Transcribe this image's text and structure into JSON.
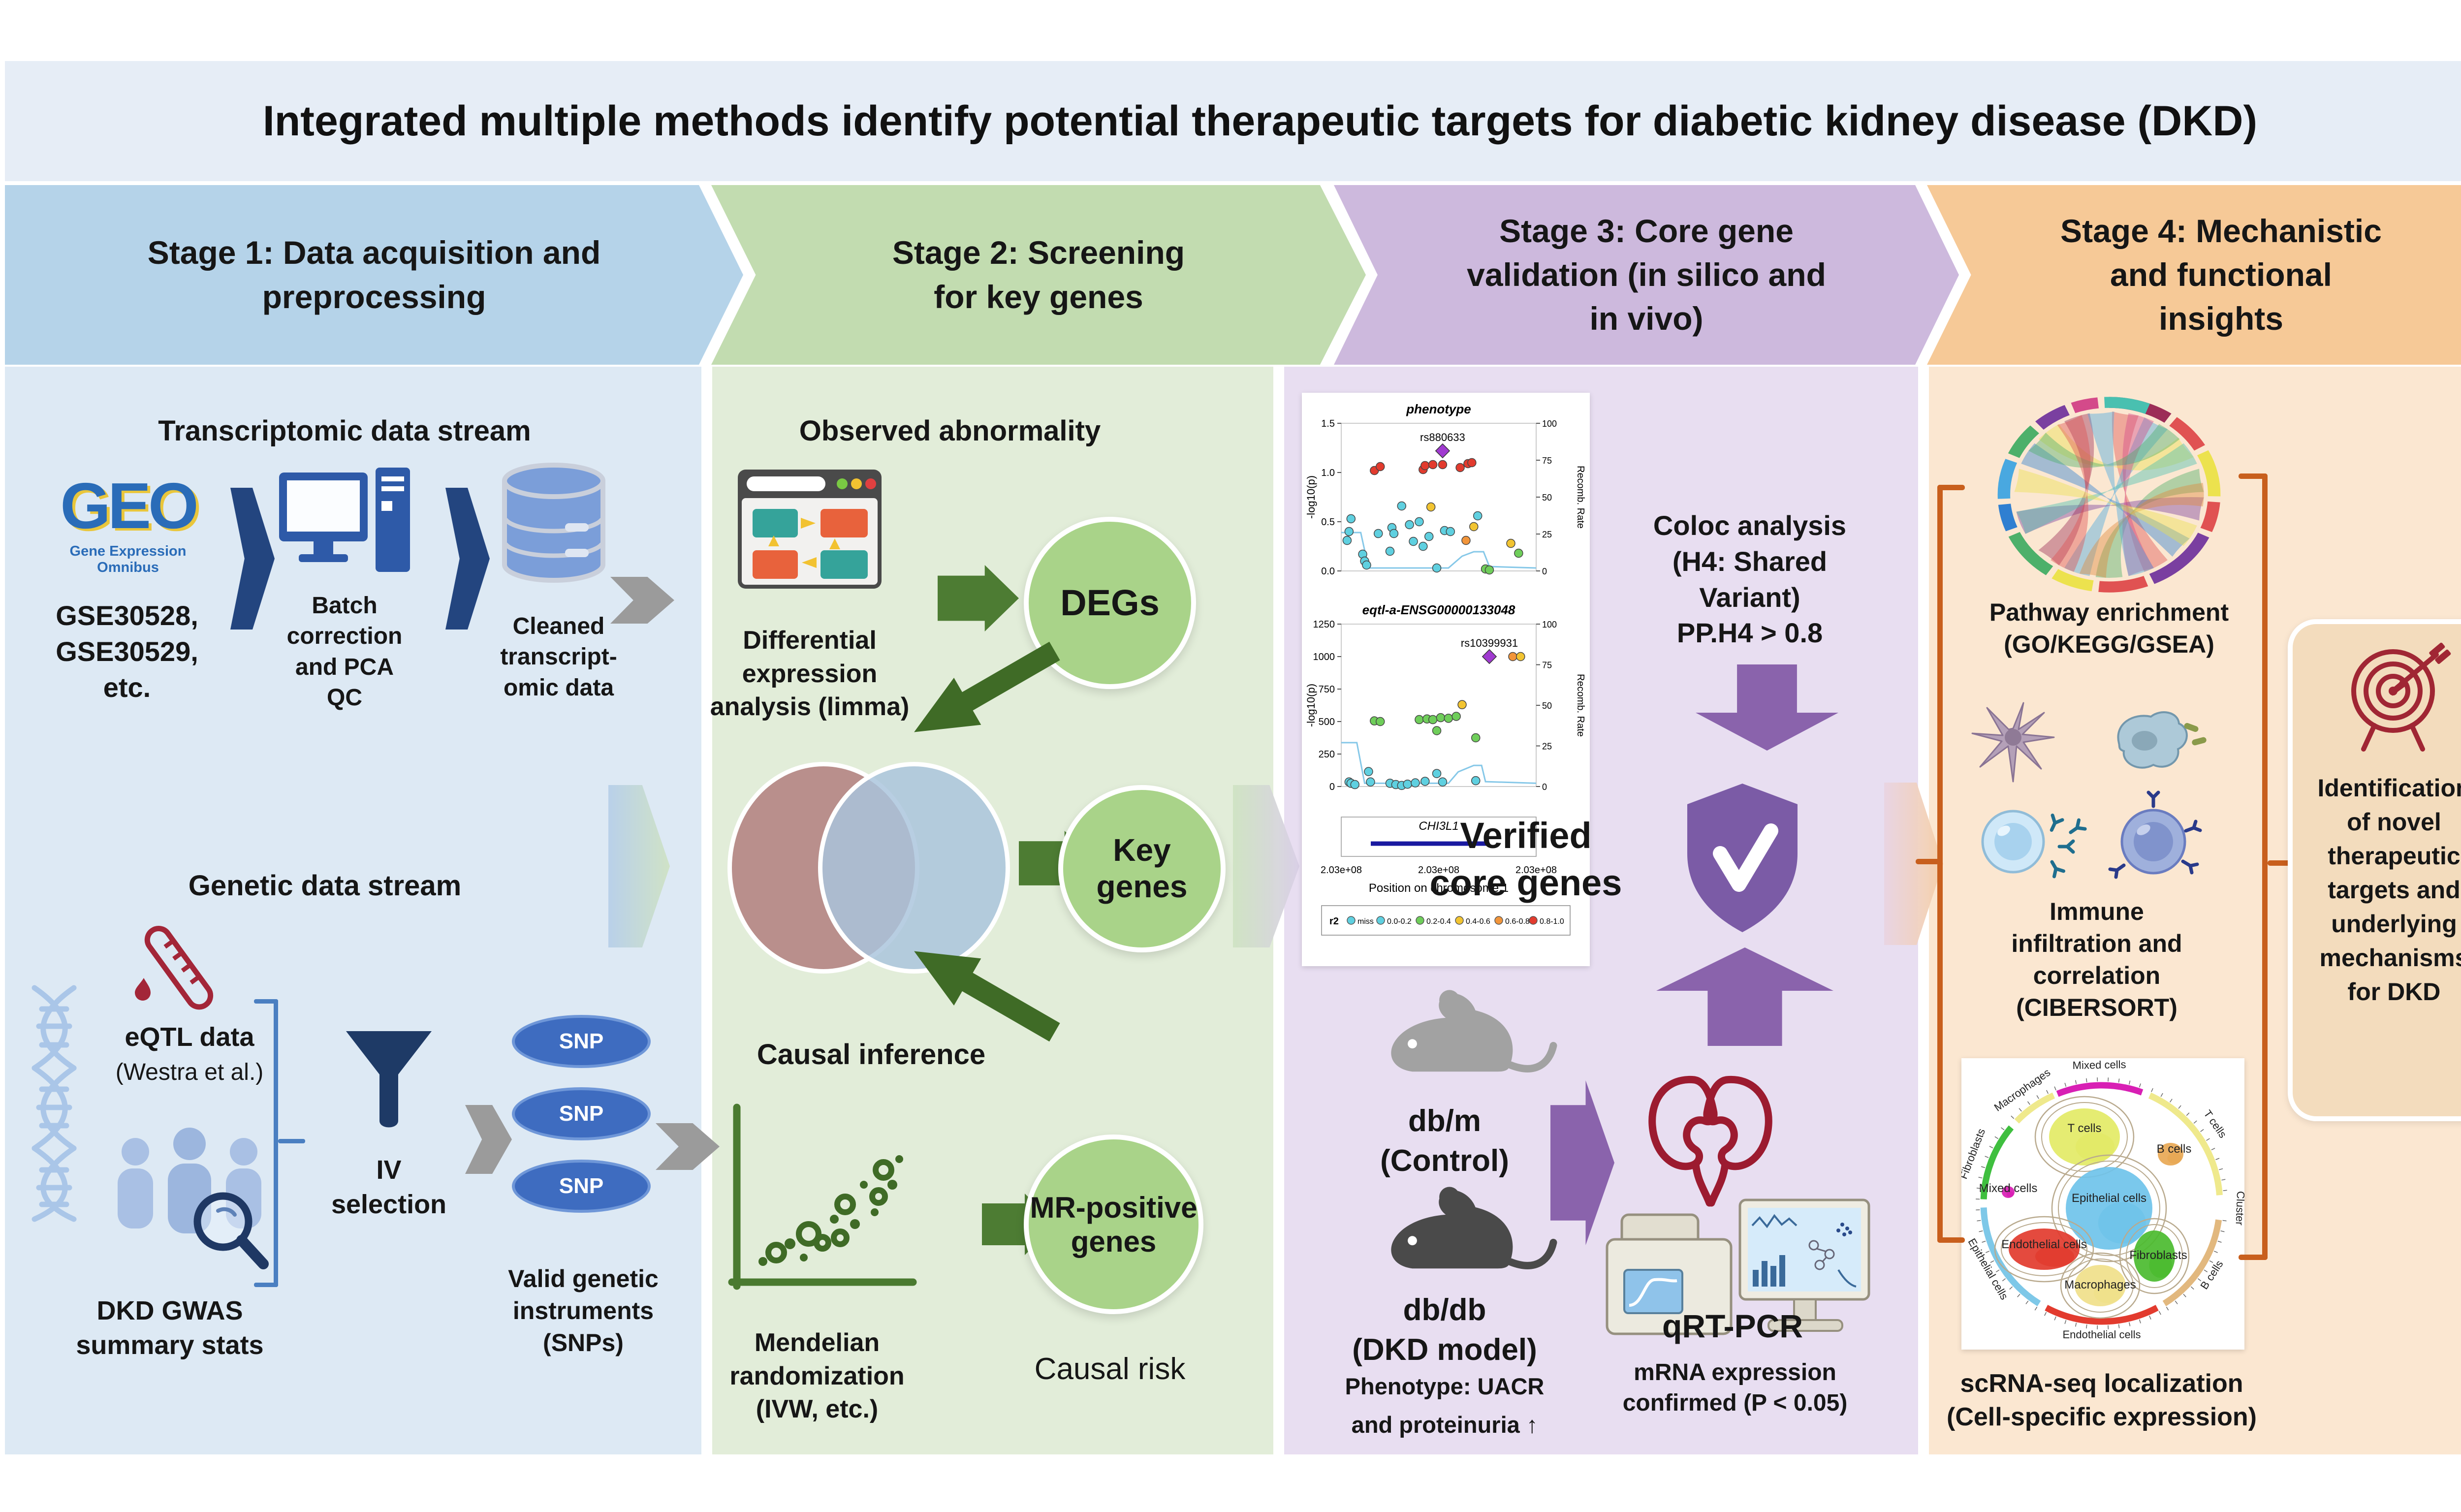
{
  "title": "Integrated multiple methods identify potential therapeutic targets for diabetic kidney disease (DKD)",
  "stages": [
    {
      "label": "Stage 1: Data acquisition and\npreprocessing"
    },
    {
      "label": "Stage 2: Screening\nfor key genes"
    },
    {
      "label": "Stage 3: Core gene\nvalidation (in silico and\nin vivo)"
    },
    {
      "label": "Stage 4: Mechanistic\nand functional\ninsights"
    }
  ],
  "stage1": {
    "heading_transcriptomic": "Transcriptomic data stream",
    "geo_logo": "GEO",
    "geo_sub": "Gene Expression Omnibus",
    "gse": "GSE30528,\nGSE30529,\netc.",
    "batch": "Batch\ncorrection\nand PCA\nQC",
    "cleaned": "Cleaned\ntranscript-\nomic data",
    "heading_genetic": "Genetic data stream",
    "eqtl": "eQTL data",
    "eqtl_sub": "(Westra et al.)",
    "gwas": "DKD GWAS\nsummary stats",
    "iv": "IV\nselection",
    "snp_label": "SNP",
    "valid": "Valid genetic\ninstruments\n(SNPs)"
  },
  "stage2": {
    "heading_observed": "Observed abnormality",
    "dea": "Differential\nexpression\nanalysis (limma)",
    "degs": "DEGs",
    "key_genes": "Key\ngenes",
    "heading_causal": "Causal inference",
    "mr": "Mendelian\nrandomization\n(IVW, etc.)",
    "mr_positive": "MR-positive\ngenes",
    "causal_risk": "Causal risk"
  },
  "stage3": {
    "coloc": "Coloc analysis\n(H4: Shared\nVariant)\nPP.H4 > 0.8",
    "verified": "Verified\ncore genes",
    "dbm": "db/m\n(Control)",
    "dbdb": "db/db\n(DKD model)",
    "phenotype_note": "Phenotype: UACR\nand proteinuria ↑",
    "qrtpcr": "qRT-PCR",
    "mrna": "mRNA expression\nconfirmed (P < 0.05)"
  },
  "stage4": {
    "pathway": "Pathway enrichment\n(GO/KEGG/GSEA)",
    "immune": "Immune\ninfiltration and\ncorrelation\n(CIBERSORT)",
    "scrna": "scRNA-seq localization\n(Cell-specific expression)",
    "id_box": "Identification\nof novel\ntherapeutic\ntargets and\nunderlying\nmechanisms\nfor DKD"
  },
  "colors": {
    "stage_headers": [
      "#b5d3e9",
      "#c2dcb0",
      "#cdb9dd",
      "#f6c997"
    ],
    "columns": [
      "#dde9f4",
      "#e2edd9",
      "#e8def1",
      "#fbe7d1"
    ],
    "green_circle": "#a9d389",
    "dark_green": "#44722c",
    "purple": "#8a63ac",
    "navy": "#23457f",
    "orange_bracket": "#c85f1d",
    "dark_red": "#9c1b30"
  },
  "chart_data": [
    {
      "type": "scatter",
      "name": "coloc-locuszoom",
      "xlabel": "Position on chromosome 1",
      "x_tick_labels": [
        "2.03e+08",
        "2.03e+08",
        "2.03e+08"
      ],
      "right_axis_label": "Recomb. Rate",
      "right_ticks": [
        0,
        25,
        50,
        75,
        100
      ],
      "gene_track": {
        "gene": "CHI3L1"
      },
      "legend": {
        "title": "r2",
        "entries": [
          {
            "label": "miss",
            "color": "#5fd0e0"
          },
          {
            "label": "0.0-0.2",
            "color": "#5fd0e0"
          },
          {
            "label": "0.2-0.4",
            "color": "#6fce5a"
          },
          {
            "label": "0.4-0.6",
            "color": "#f2c431"
          },
          {
            "label": "0.6-0.8",
            "color": "#f2953a"
          },
          {
            "label": "0.8-1.0",
            "color": "#e23b2e"
          }
        ]
      },
      "plots": [
        {
          "title": "phenotype",
          "ylabel": "-log10(p)",
          "ylim": [
            0,
            1.5
          ],
          "yticks": [
            "0.0",
            "0.5",
            "1.0",
            "1.5"
          ],
          "highlight": {
            "label": "rs880633",
            "x": 0.52,
            "y": 1.22,
            "color": "#a03ad0"
          },
          "points": [
            {
              "x": 0.17,
              "y": 1.02,
              "c": "#e23b2e"
            },
            {
              "x": 0.2,
              "y": 1.06,
              "c": "#e23b2e"
            },
            {
              "x": 0.42,
              "y": 1.03,
              "c": "#e23b2e"
            },
            {
              "x": 0.43,
              "y": 1.07,
              "c": "#e23b2e"
            },
            {
              "x": 0.47,
              "y": 1.08,
              "c": "#e23b2e"
            },
            {
              "x": 0.52,
              "y": 1.08,
              "c": "#e23b2e"
            },
            {
              "x": 0.61,
              "y": 1.05,
              "c": "#e23b2e"
            },
            {
              "x": 0.65,
              "y": 1.09,
              "c": "#e23b2e"
            },
            {
              "x": 0.67,
              "y": 1.1,
              "c": "#e23b2e"
            },
            {
              "x": 0.05,
              "y": 0.53,
              "c": "#5fd0e0"
            },
            {
              "x": 0.04,
              "y": 0.4,
              "c": "#5fd0e0"
            },
            {
              "x": 0.03,
              "y": 0.31,
              "c": "#5fd0e0"
            },
            {
              "x": 0.11,
              "y": 0.17,
              "c": "#5fd0e0"
            },
            {
              "x": 0.12,
              "y": 0.1,
              "c": "#5fd0e0"
            },
            {
              "x": 0.13,
              "y": 0.06,
              "c": "#5fd0e0"
            },
            {
              "x": 0.19,
              "y": 0.38,
              "c": "#5fd0e0"
            },
            {
              "x": 0.26,
              "y": 0.44,
              "c": "#5fd0e0"
            },
            {
              "x": 0.27,
              "y": 0.38,
              "c": "#5fd0e0"
            },
            {
              "x": 0.25,
              "y": 0.2,
              "c": "#5fd0e0"
            },
            {
              "x": 0.31,
              "y": 0.66,
              "c": "#5fd0e0"
            },
            {
              "x": 0.35,
              "y": 0.47,
              "c": "#5fd0e0"
            },
            {
              "x": 0.37,
              "y": 0.3,
              "c": "#5fd0e0"
            },
            {
              "x": 0.4,
              "y": 0.5,
              "c": "#5fd0e0"
            },
            {
              "x": 0.42,
              "y": 0.25,
              "c": "#5fd0e0"
            },
            {
              "x": 0.45,
              "y": 0.35,
              "c": "#5fd0e0"
            },
            {
              "x": 0.49,
              "y": 0.03,
              "c": "#5fd0e0"
            },
            {
              "x": 0.53,
              "y": 0.41,
              "c": "#5fd0e0"
            },
            {
              "x": 0.7,
              "y": 0.56,
              "c": "#5fd0e0"
            },
            {
              "x": 0.56,
              "y": 0.4,
              "c": "#5fd0e0"
            },
            {
              "x": 0.46,
              "y": 0.65,
              "c": "#f2c431"
            },
            {
              "x": 0.68,
              "y": 0.45,
              "c": "#f2c431"
            },
            {
              "x": 0.87,
              "y": 0.28,
              "c": "#f2c431"
            },
            {
              "x": 0.64,
              "y": 0.31,
              "c": "#f2953a"
            },
            {
              "x": 0.91,
              "y": 0.18,
              "c": "#6fce5a"
            },
            {
              "x": 0.74,
              "y": 0.02,
              "c": "#6fce5a"
            },
            {
              "x": 0.76,
              "y": 0.01,
              "c": "#6fce5a"
            }
          ],
          "recomb_line": [
            [
              0,
              0.26
            ],
            [
              0.1,
              0.26
            ],
            [
              0.14,
              0.02
            ],
            [
              0.55,
              0.02
            ],
            [
              0.62,
              0.1
            ],
            [
              0.68,
              0.13
            ],
            [
              0.73,
              0.13
            ],
            [
              0.76,
              0.03
            ],
            [
              1,
              0.02
            ]
          ]
        },
        {
          "title": "eqtl-a-ENSG00000133048",
          "ylabel": "-log10(p)",
          "ylim": [
            0,
            1250
          ],
          "yticks": [
            "0",
            "250",
            "500",
            "750",
            "1000",
            "1250"
          ],
          "highlight": {
            "label": "rs10399931",
            "x": 0.76,
            "y": 1000,
            "color": "#a03ad0"
          },
          "points": [
            {
              "x": 0.88,
              "y": 1000,
              "c": "#f2953a"
            },
            {
              "x": 0.92,
              "y": 1000,
              "c": "#f2c431"
            },
            {
              "x": 0.17,
              "y": 505,
              "c": "#6fce5a"
            },
            {
              "x": 0.2,
              "y": 500,
              "c": "#6fce5a"
            },
            {
              "x": 0.4,
              "y": 515,
              "c": "#6fce5a"
            },
            {
              "x": 0.44,
              "y": 520,
              "c": "#6fce5a"
            },
            {
              "x": 0.47,
              "y": 515,
              "c": "#6fce5a"
            },
            {
              "x": 0.51,
              "y": 530,
              "c": "#6fce5a"
            },
            {
              "x": 0.55,
              "y": 525,
              "c": "#6fce5a"
            },
            {
              "x": 0.59,
              "y": 540,
              "c": "#6fce5a"
            },
            {
              "x": 0.49,
              "y": 430,
              "c": "#6fce5a"
            },
            {
              "x": 0.62,
              "y": 630,
              "c": "#f2c431"
            },
            {
              "x": 0.69,
              "y": 375,
              "c": "#6fce5a"
            },
            {
              "x": 0.04,
              "y": 35,
              "c": "#5fd0e0"
            },
            {
              "x": 0.05,
              "y": 25,
              "c": "#5fd0e0"
            },
            {
              "x": 0.07,
              "y": 15,
              "c": "#5fd0e0"
            },
            {
              "x": 0.14,
              "y": 115,
              "c": "#5fd0e0"
            },
            {
              "x": 0.15,
              "y": 35,
              "c": "#5fd0e0"
            },
            {
              "x": 0.25,
              "y": 25,
              "c": "#5fd0e0"
            },
            {
              "x": 0.28,
              "y": 15,
              "c": "#5fd0e0"
            },
            {
              "x": 0.31,
              "y": 8,
              "c": "#5fd0e0"
            },
            {
              "x": 0.34,
              "y": 18,
              "c": "#5fd0e0"
            },
            {
              "x": 0.38,
              "y": 28,
              "c": "#5fd0e0"
            },
            {
              "x": 0.43,
              "y": 40,
              "c": "#5fd0e0"
            },
            {
              "x": 0.49,
              "y": 100,
              "c": "#5fd0e0"
            },
            {
              "x": 0.52,
              "y": 35,
              "c": "#5fd0e0"
            },
            {
              "x": 0.69,
              "y": 45,
              "c": "#5fd0e0"
            }
          ],
          "recomb_line": [
            [
              0,
              0.27
            ],
            [
              0.08,
              0.27
            ],
            [
              0.12,
              0.02
            ],
            [
              0.55,
              0.02
            ],
            [
              0.6,
              0.09
            ],
            [
              0.68,
              0.13
            ],
            [
              0.72,
              0.13
            ],
            [
              0.74,
              0.03
            ],
            [
              1,
              0.02
            ]
          ]
        }
      ]
    },
    {
      "type": "scatter",
      "name": "scrna-circos-umap",
      "tick_values": [
        0,
        0.7,
        1.4,
        2.1,
        2.8,
        3.5
      ],
      "arcs": [
        {
          "label": "Mixed cells",
          "color": "#d81fb4",
          "from": -22,
          "to": 20
        },
        {
          "label": "T cells",
          "color": "#efe98c",
          "from": 24,
          "to": 86
        },
        {
          "label": "Cluster",
          "color": null,
          "from": 88,
          "to": 96
        },
        {
          "label": "B cells",
          "color": "#e2b87e",
          "from": 98,
          "to": 148
        },
        {
          "label": "Endothelial cells",
          "color": "#e23b2e",
          "from": 152,
          "to": 208
        },
        {
          "label": "Epithelial cells",
          "color": "#7ec8e8",
          "from": 212,
          "to": 268
        },
        {
          "label": "Fibroblasts",
          "color": "#3fbf3f",
          "from": 272,
          "to": 310
        },
        {
          "label": "Macrophages",
          "color": "#efe98c",
          "from": 314,
          "to": 336
        }
      ],
      "clusters": [
        {
          "label": "T cells",
          "color": "#e3ea66",
          "cx": 250,
          "cy": 160,
          "rx": 72,
          "ry": 58,
          "lx": 250,
          "ly": 150
        },
        {
          "label": "B cells",
          "color": "#e8a855",
          "cx": 425,
          "cy": 195,
          "rx": 26,
          "ry": 23,
          "lx": 432,
          "ly": 192
        },
        {
          "label": "Epithelial cells",
          "color": "#6fc3ea",
          "cx": 300,
          "cy": 305,
          "rx": 88,
          "ry": 84,
          "lx": 300,
          "ly": 292
        },
        {
          "label": "Mixed cells",
          "color": "#d81fb4",
          "cx": 95,
          "cy": 272,
          "rx": 13,
          "ry": 12,
          "lx": 95,
          "ly": 272
        },
        {
          "label": "Endothelial cells",
          "color": "#e23b2e",
          "cx": 168,
          "cy": 388,
          "rx": 72,
          "ry": 42,
          "lx": 168,
          "ly": 386
        },
        {
          "label": "Fibroblasts",
          "color": "#4bbb2f",
          "cx": 392,
          "cy": 402,
          "rx": 42,
          "ry": 52,
          "lx": 400,
          "ly": 408
        },
        {
          "label": "Macrophages",
          "color": "#f0e08a",
          "cx": 282,
          "cy": 462,
          "rx": 52,
          "ry": 42,
          "lx": 282,
          "ly": 468
        }
      ]
    },
    {
      "type": "chord",
      "name": "pathway-chord-diagram",
      "segments": [
        {
          "size": 34,
          "color": "#9c2d57"
        },
        {
          "size": 22,
          "color": "#e05252"
        },
        {
          "size": 28,
          "color": "#ece24e"
        },
        {
          "size": 18,
          "color": "#e05252"
        },
        {
          "size": 40,
          "color": "#7a3fa0"
        },
        {
          "size": 26,
          "color": "#e05252"
        },
        {
          "size": 22,
          "color": "#ece24e"
        },
        {
          "size": 30,
          "color": "#4db06a"
        },
        {
          "size": 16,
          "color": "#2f7fd1"
        },
        {
          "size": 24,
          "color": "#49a8e0"
        },
        {
          "size": 20,
          "color": "#4db06a"
        },
        {
          "size": 18,
          "color": "#7a3fa0"
        },
        {
          "size": 14,
          "color": "#d44a8a"
        },
        {
          "size": 24,
          "color": "#49c0b0"
        }
      ],
      "ribbons": [
        {
          "a": 10,
          "b": 150,
          "c": "#e05252"
        },
        {
          "a": 30,
          "b": 200,
          "c": "#49a8e0"
        },
        {
          "a": 55,
          "b": 320,
          "c": "#ece24e"
        },
        {
          "a": 80,
          "b": 180,
          "c": "#4db06a"
        },
        {
          "a": 100,
          "b": 250,
          "c": "#7a3fa0"
        },
        {
          "a": 130,
          "b": 300,
          "c": "#2f7fd1"
        },
        {
          "a": 160,
          "b": 20,
          "c": "#d44a8a"
        },
        {
          "a": 190,
          "b": 90,
          "c": "#e08a3c"
        },
        {
          "a": 220,
          "b": 340,
          "c": "#9c2d57"
        },
        {
          "a": 250,
          "b": 60,
          "c": "#49c0b0"
        },
        {
          "a": 280,
          "b": 120,
          "c": "#ece24e"
        },
        {
          "a": 310,
          "b": 40,
          "c": "#4db06a"
        },
        {
          "a": 335,
          "b": 210,
          "c": "#e05252"
        },
        {
          "a": 355,
          "b": 160,
          "c": "#49a8e0"
        }
      ]
    }
  ]
}
